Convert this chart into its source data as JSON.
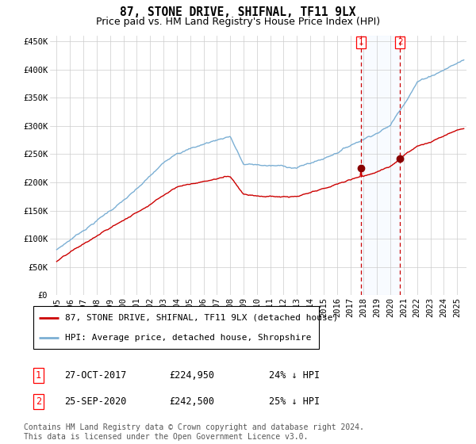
{
  "title": "87, STONE DRIVE, SHIFNAL, TF11 9LX",
  "subtitle": "Price paid vs. HM Land Registry's House Price Index (HPI)",
  "ylabel_ticks": [
    "£0",
    "£50K",
    "£100K",
    "£150K",
    "£200K",
    "£250K",
    "£300K",
    "£350K",
    "£400K",
    "£450K"
  ],
  "ytick_vals": [
    0,
    50000,
    100000,
    150000,
    200000,
    250000,
    300000,
    350000,
    400000,
    450000
  ],
  "ylim": [
    0,
    460000
  ],
  "xlim_start": 1994.5,
  "xlim_end": 2025.7,
  "marker1_x": 2017.82,
  "marker1_y": 224950,
  "marker2_x": 2020.73,
  "marker2_y": 242500,
  "vline1_x": 2017.82,
  "vline2_x": 2020.73,
  "hpi_color": "#7bafd4",
  "price_color": "#cc0000",
  "marker_color": "#880000",
  "vline_color": "#cc0000",
  "shade_color": "#ddeeff",
  "grid_color": "#cccccc",
  "background_color": "#ffffff",
  "legend_label_red": "87, STONE DRIVE, SHIFNAL, TF11 9LX (detached house)",
  "legend_label_blue": "HPI: Average price, detached house, Shropshire",
  "table_row1_num": "1",
  "table_row1_date": "27-OCT-2017",
  "table_row1_price": "£224,950",
  "table_row1_hpi": "24% ↓ HPI",
  "table_row2_num": "2",
  "table_row2_date": "25-SEP-2020",
  "table_row2_price": "£242,500",
  "table_row2_hpi": "25% ↓ HPI",
  "footnote": "Contains HM Land Registry data © Crown copyright and database right 2024.\nThis data is licensed under the Open Government Licence v3.0.",
  "title_fontsize": 10.5,
  "subtitle_fontsize": 9,
  "tick_fontsize": 7.5,
  "legend_fontsize": 8,
  "table_fontsize": 8.5,
  "footnote_fontsize": 7
}
